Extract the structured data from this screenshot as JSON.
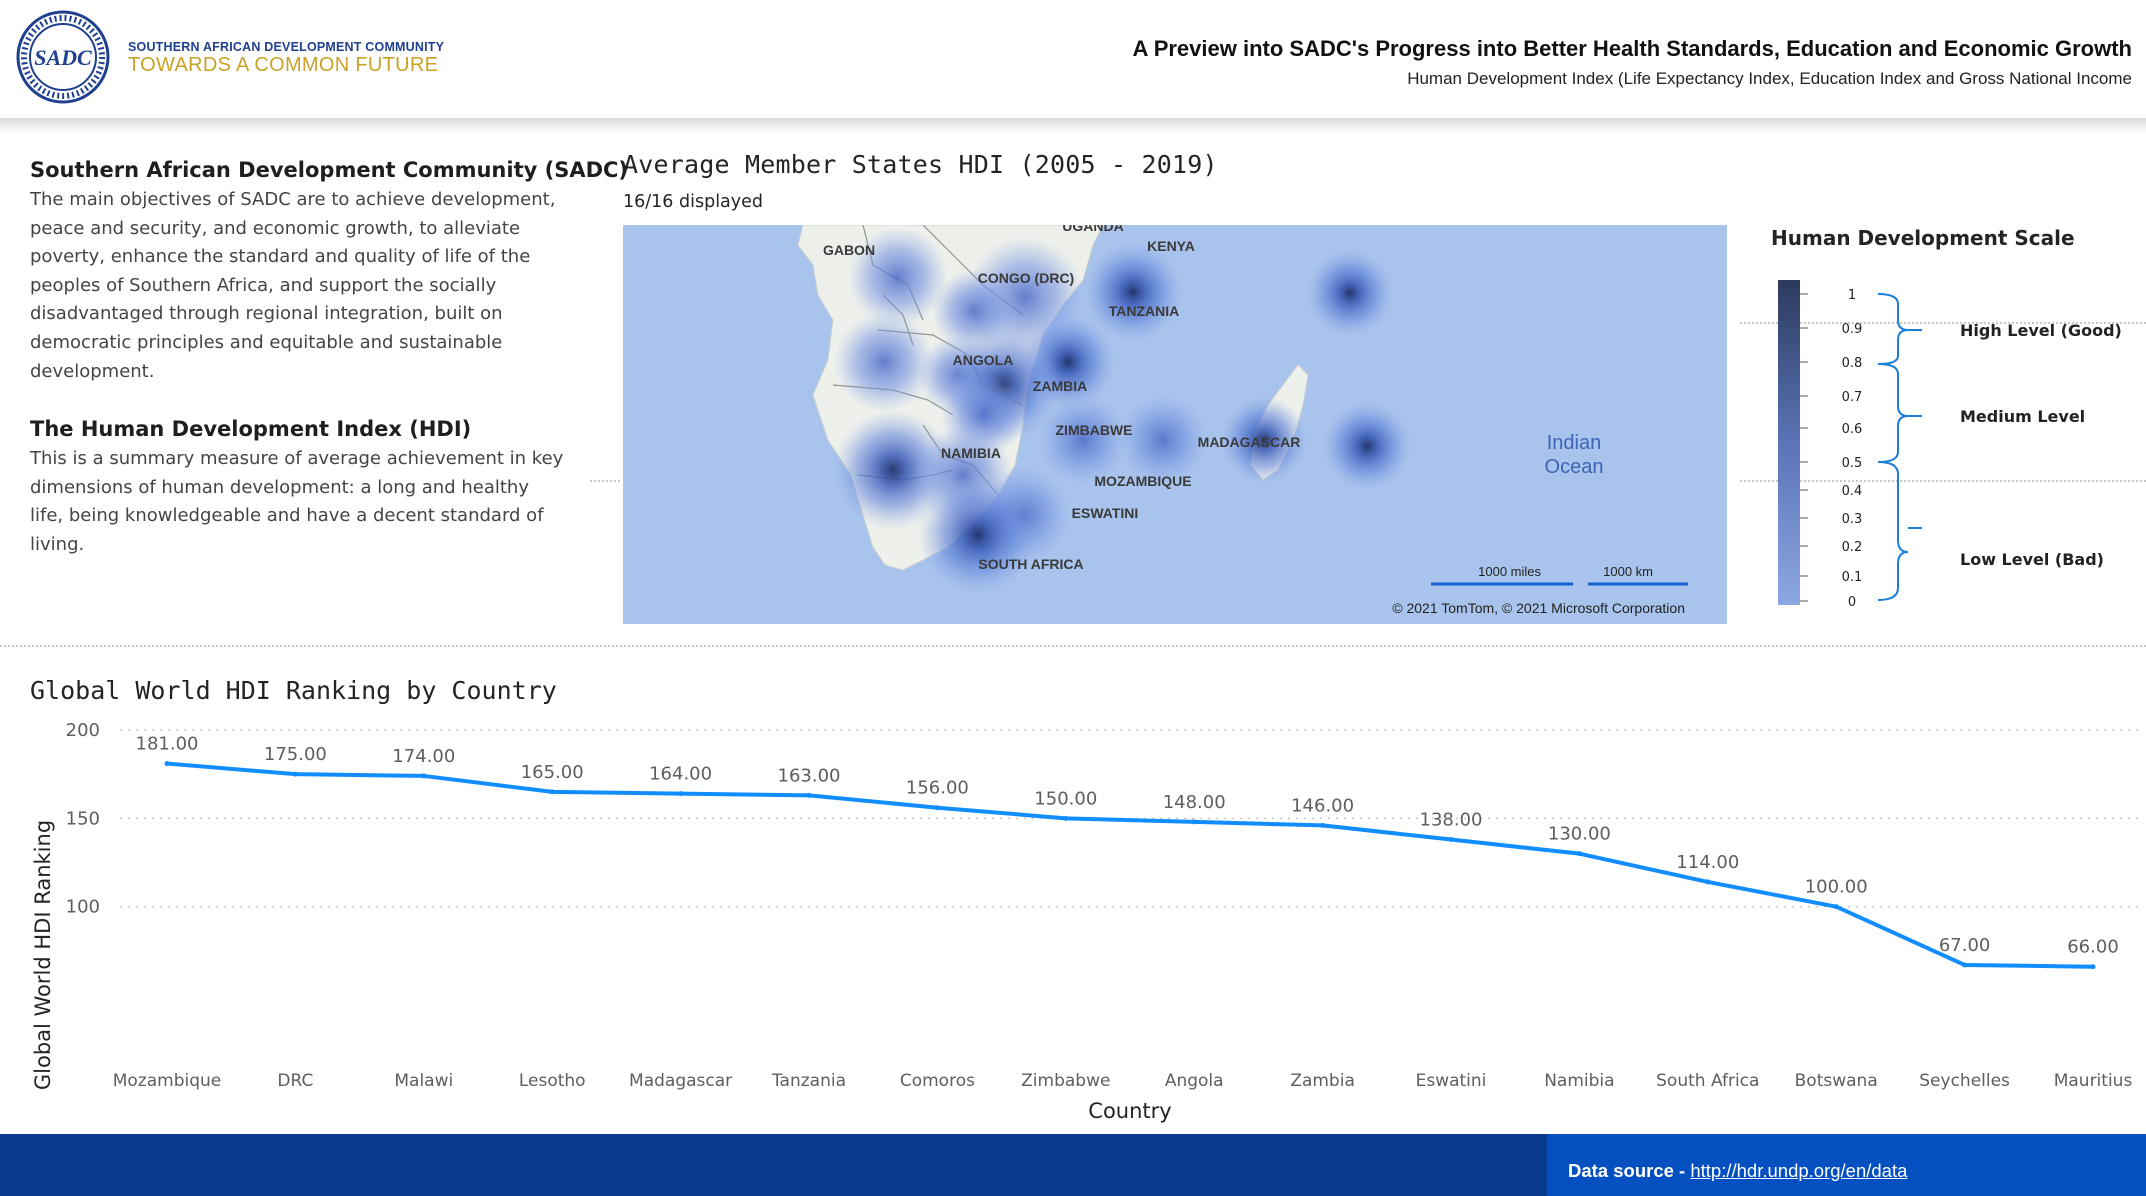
{
  "header": {
    "org_name": "SOUTHERN AFRICAN DEVELOPMENT COMMUNITY",
    "tagline": "TOWARDS A COMMON FUTURE",
    "logo_text": "SADC",
    "title": "A Preview into SADC's Progress into Better Health Standards, Education and Economic Growth",
    "subtitle": "Human Development Index (Life Expectancy Index, Education Index and Gross National Income"
  },
  "intro": {
    "sadc_heading": "Southern African Development Community (SADC)",
    "sadc_lines": [
      "The main objectives of SADC are to achieve development,",
      "peace and security, and economic growth, to alleviate",
      "poverty, enhance the standard and quality of life of the",
      "peoples of Southern Africa, and support the socially",
      "disadvantaged through regional  integration, built on",
      "democratic principles and equitable and sustainable",
      "development."
    ],
    "hdi_heading": "The Human Development Index (HDI)",
    "hdi_lines": [
      "This is a summary measure of average achievement in key",
      "dimensions of human development: a long and healthy",
      "life, being knowledgeable and have a decent standard of",
      "living."
    ]
  },
  "map": {
    "title": "Average Member States HDI (2005 - 2019)",
    "count": "16/16 displayed",
    "labels": [
      "UGANDA",
      "GABON",
      "KENYA",
      "CONGO (DRC)",
      "TANZANIA",
      "ANGOLA",
      "ZAMBIA",
      "ZIMBABWE",
      "NAMIBIA",
      "MADAGASCAR",
      "MOZAMBIQUE",
      "ESWATINI",
      "SOUTH AFRICA"
    ],
    "ocean_line1": "Indian",
    "ocean_line2": "Ocean",
    "scale_miles": "1000 miles",
    "scale_km": "1000 km",
    "copyright": "© 2021 TomTom, © 2021 Microsoft Corporation",
    "colors": {
      "ocean": "#a8c3ec",
      "land": "#eef0ec",
      "heat_low": "#8eaae6",
      "heat_high": "#283c78"
    }
  },
  "scale": {
    "title": "Human Development Scale",
    "ticks": [
      "1",
      "0.9",
      "0.8",
      "0.7",
      "0.6",
      "0.5",
      "0.4",
      "0.3",
      "0.2",
      "0.1",
      "0"
    ],
    "high": "High Level (Good)",
    "medium": "Medium Level",
    "low": "Low Level (Bad)"
  },
  "chart_title": "Global World HDI Ranking by Country",
  "chart_data": {
    "type": "line",
    "title": "Global World HDI Ranking by Country",
    "xlabel": "Country",
    "ylabel": "Global World HDI Ranking",
    "categories": [
      "Mozambique",
      "DRC",
      "Malawi",
      "Lesotho",
      "Madagascar",
      "Tanzania",
      "Comoros",
      "Zimbabwe",
      "Angola",
      "Zambia",
      "Eswatini",
      "Namibia",
      "South Africa",
      "Botswana",
      "Seychelles",
      "Mauritius"
    ],
    "values": [
      181,
      175,
      174,
      165,
      164,
      163,
      156,
      150,
      148,
      146,
      138,
      130,
      114,
      100,
      67,
      66
    ],
    "value_labels": [
      "181.00",
      "175.00",
      "174.00",
      "165.00",
      "164.00",
      "163.00",
      "156.00",
      "150.00",
      "148.00",
      "146.00",
      "138.00",
      "130.00",
      "114.00",
      "100.00",
      "67.00",
      "66.00"
    ],
    "y_ticks": [
      100,
      150,
      200
    ],
    "ylim": [
      50,
      200
    ],
    "grid": true,
    "color": "#118dff"
  },
  "footer": {
    "label": "Data source - ",
    "link": "http://hdr.undp.org/en/data"
  }
}
